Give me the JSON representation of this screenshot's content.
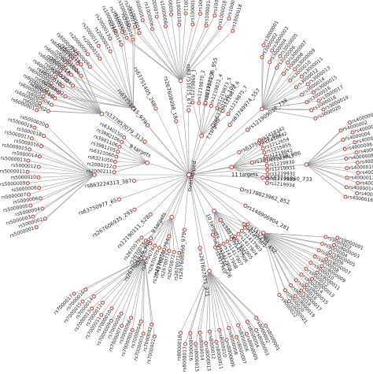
{
  "root": {
    "label": "overlapped"
  },
  "hubs": [
    {
      "label": "7 targets",
      "leaves": [
        "rs1219869_1",
        "rs1219870_2",
        "rs1219871_3",
        "rs1219872_4",
        "rs1219873_5",
        "rs1219874_6",
        "rs1219875_7"
      ]
    },
    {
      "label": "8 targets",
      "leaves": [
        "rs2000211",
        "rs2000212",
        "rs6321050",
        "rs6321060",
        "rs3981105",
        "rs3981106",
        "rs3982106",
        "rs6340150"
      ]
    },
    {
      "label": "9 targets",
      "leaves": [
        "rs2670071",
        "rs2670072",
        "rs2670073",
        "rs2670074",
        "rs2670075",
        "rs2670076",
        "rs2670077",
        "rs2670078",
        "rs2670079"
      ]
    },
    {
      "label": "10 targets",
      "leaves": [
        "rs1417901",
        "rs1417902",
        "rs1417903",
        "rs1417904",
        "rs1417905",
        "rs1417906",
        "rs1417907",
        "rs1417908",
        "rs1417909",
        "rs1417910"
      ]
    },
    {
      "label": "11 targets",
      "leaves": [
        "rs1418342",
        "rs1416642",
        "rs1212654",
        "rs1215855",
        "rs1219042",
        "rs1203043",
        "rs1219930",
        "rs1219931",
        "rs1219932",
        "rs1219933",
        "rs1219934"
      ]
    }
  ],
  "direct_labels": [
    "rs137853079_313",
    "rs63751715_979",
    "rs63751405_268",
    "rs267608098_18",
    "rs63751015_671",
    "rs63750296_955",
    "rs63750756_104",
    "rs63749974_557",
    "rs121909038_738",
    "rs63750309_852",
    "rs387906238_986",
    "rs587776860_733",
    "rs178823962_852",
    "rs148906904_281",
    "rs8754470_452",
    "rs3881462_681",
    "rs63750934_726",
    "rs267607871_271",
    "rs267606966_979",
    "rs104270222_794",
    "rs267606926_460",
    "rs12190111_528",
    "rs267606935_293",
    "rs63750977_65",
    "rs863224313_387"
  ],
  "clusters": [
    {
      "leaves": [
        "rs1000001",
        "rs1000002",
        "rs1000003",
        "rs1000004",
        "rs1000005",
        "rs1000006",
        "rs1000007",
        "rs1000008",
        "rs1000009",
        "rs1000010",
        "rs1000011",
        "rs1000012",
        "rs1000013",
        "rs1000014",
        "rs1000015",
        "rs1000016",
        "rs1000017",
        "rs1000018"
      ]
    },
    {
      "leaves": [
        "rs2000001",
        "rs2000002",
        "rs2000003",
        "rs2000004",
        "rs2000005",
        "rs2000006",
        "rs2000007",
        "rs2000008",
        "rs2000009",
        "rs2000010",
        "rs2000011",
        "rs2000012",
        "rs2000013",
        "rs2000014",
        "rs2000015",
        "rs2000016",
        "rs2000017"
      ]
    },
    {
      "leaves": [
        "rs3000001",
        "rs3000002",
        "rs3000003",
        "rs3000004",
        "rs3000005",
        "rs3000006",
        "rs3000007",
        "rs3000008",
        "rs3000009",
        "rs3000010",
        "rs3000011",
        "rs3000012",
        "rs3000013",
        "rs3000014",
        "rs3000015",
        "rs3000016",
        "rs3000017",
        "rs3000018",
        "rs3000019",
        "rs3000020"
      ]
    },
    {
      "leaves": [
        "rs4000001",
        "rs4000002",
        "rs4000003",
        "rs4000004",
        "rs4000005",
        "rs4000006",
        "rs4000007",
        "rs4000008",
        "rs4000009",
        "rs4000010",
        "rs4000011",
        "rs4000012",
        "rs4000013",
        "rs4000014",
        "rs4000015",
        "rs4000016"
      ]
    },
    {
      "leaves": [
        "rs5000001",
        "rs5000002",
        "rs5000003",
        "rs5000004",
        "rs5000005",
        "rs5000006",
        "rs5000007",
        "rs5000008",
        "rs5000009",
        "rs5000010",
        "rs5000011",
        "rs5000012",
        "rs5000013",
        "rs5000014",
        "rs5000015",
        "rs5000016",
        "rs5000017",
        "rs5000018",
        "rs5000019",
        "rs5000020"
      ]
    },
    {
      "leaves": [
        "rs6000001",
        "rs6000002",
        "rs6000003",
        "rs6000004",
        "rs6000005",
        "rs6000006",
        "rs6000007",
        "rs6000008",
        "rs6000009",
        "rs6000010",
        "rs6000011",
        "rs6000012",
        "rs6000013",
        "rs6000014",
        "rs6000015",
        "rs6000016",
        "rs6000017",
        "rs6000018",
        "rs6000019"
      ]
    },
    {
      "leaves": [
        "rs7000001",
        "rs7000002",
        "rs7000003",
        "rs7000004",
        "rs7000005",
        "rs7000006",
        "rs7000007",
        "rs7000008",
        "rs7000009",
        "rs7000010",
        "rs7000011",
        "rs7000012",
        "rs7000013",
        "rs7000014",
        "rs7000015",
        "rs7000016",
        "rs7000017"
      ]
    },
    {
      "leaves": [
        "rs8000001",
        "rs8000002",
        "rs8000003",
        "rs8000004",
        "rs8000005",
        "rs8000006",
        "rs8000007",
        "rs8000008",
        "rs8000009",
        "rs8000010",
        "rs8000011",
        "rs8000012",
        "rs8000013",
        "rs8000014",
        "rs8000015",
        "rs8000016",
        "rs8000017",
        "rs8000018"
      ]
    },
    {
      "leaves": [
        "rs9000001",
        "rs9000002",
        "rs9000003",
        "rs9000004",
        "rs9000005",
        "rs9000006",
        "rs9000007",
        "rs9000008",
        "rs9000009",
        "rs9000010",
        "rs9000011",
        "rs9000012",
        "rs9000013",
        "rs9000014",
        "rs9000015",
        "rs9000016",
        "rs9000017",
        "rs9000018",
        "rs9000019",
        "rs9000020",
        "rs9000021",
        "rs9000022"
      ]
    }
  ],
  "colors": {
    "edge": "#9a9a9a",
    "node_stroke": "#c0392b",
    "node_fill": "#ffffff",
    "text": "#222222"
  }
}
